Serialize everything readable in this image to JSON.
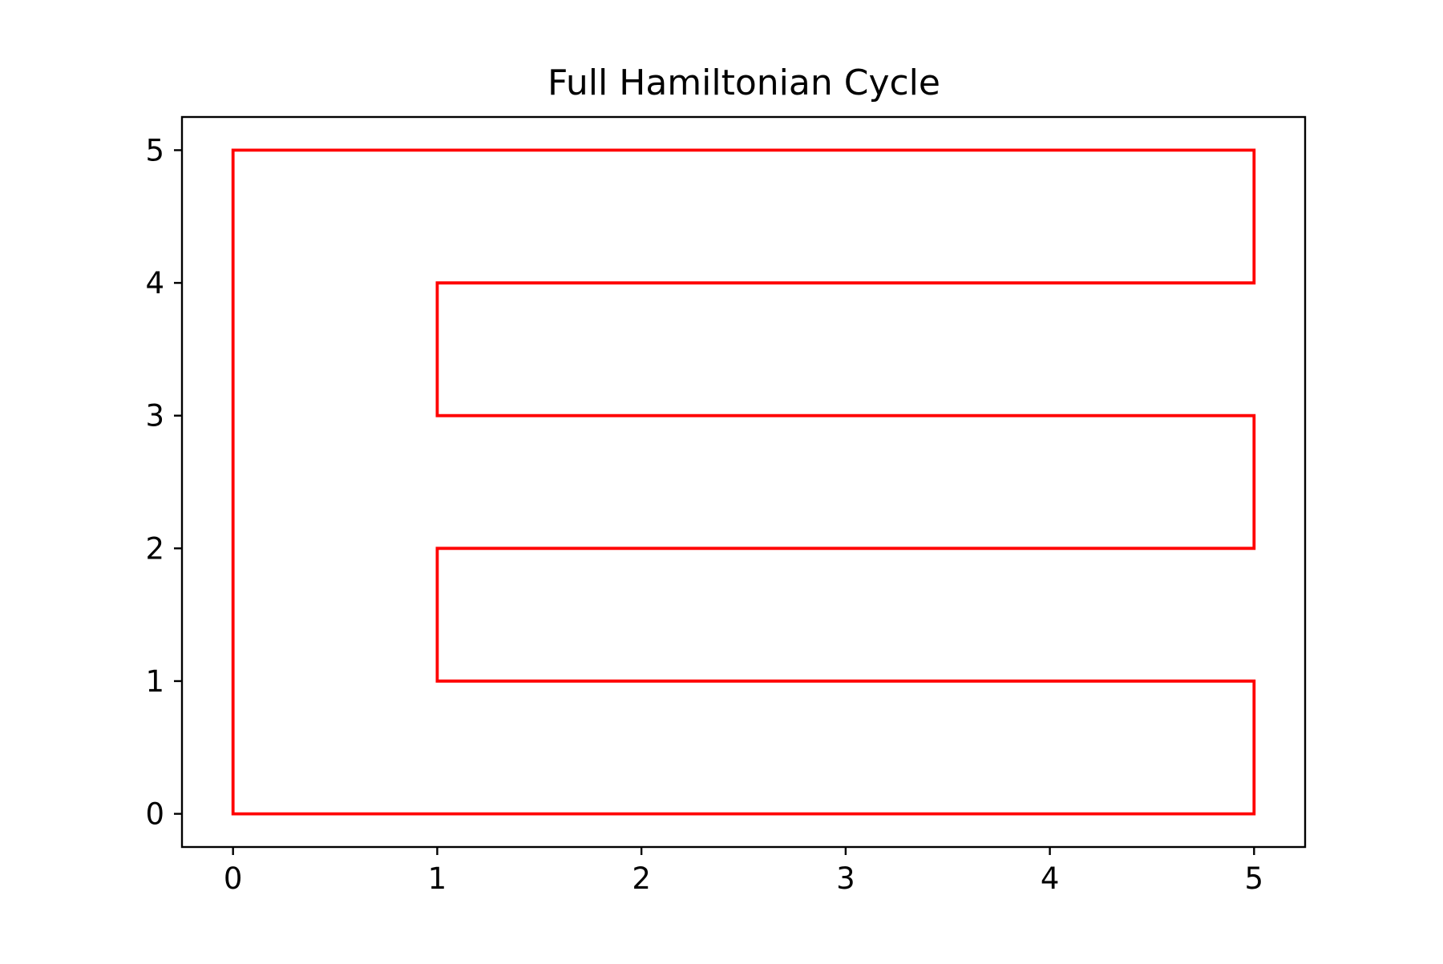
{
  "chart_data": {
    "type": "line",
    "title": "Full Hamiltonian Cycle",
    "xlabel": "",
    "ylabel": "",
    "xlim": [
      -0.25,
      5.25
    ],
    "ylim": [
      -0.25,
      5.25
    ],
    "xticks": [
      0,
      1,
      2,
      3,
      4,
      5
    ],
    "yticks": [
      0,
      1,
      2,
      3,
      4,
      5
    ],
    "grid": false,
    "series": [
      {
        "color": "#ff0000",
        "points": [
          [
            0,
            0
          ],
          [
            1,
            0
          ],
          [
            2,
            0
          ],
          [
            3,
            0
          ],
          [
            4,
            0
          ],
          [
            5,
            0
          ],
          [
            5,
            1
          ],
          [
            4,
            1
          ],
          [
            3,
            1
          ],
          [
            2,
            1
          ],
          [
            1,
            1
          ],
          [
            1,
            2
          ],
          [
            2,
            2
          ],
          [
            3,
            2
          ],
          [
            4,
            2
          ],
          [
            5,
            2
          ],
          [
            5,
            3
          ],
          [
            4,
            3
          ],
          [
            3,
            3
          ],
          [
            2,
            3
          ],
          [
            1,
            3
          ],
          [
            1,
            4
          ],
          [
            2,
            4
          ],
          [
            3,
            4
          ],
          [
            4,
            4
          ],
          [
            5,
            4
          ],
          [
            5,
            5
          ],
          [
            4,
            5
          ],
          [
            3,
            5
          ],
          [
            2,
            5
          ],
          [
            1,
            5
          ],
          [
            0,
            5
          ],
          [
            0,
            4
          ],
          [
            0,
            3
          ],
          [
            0,
            2
          ],
          [
            0,
            1
          ],
          [
            0,
            0
          ]
        ]
      }
    ]
  }
}
